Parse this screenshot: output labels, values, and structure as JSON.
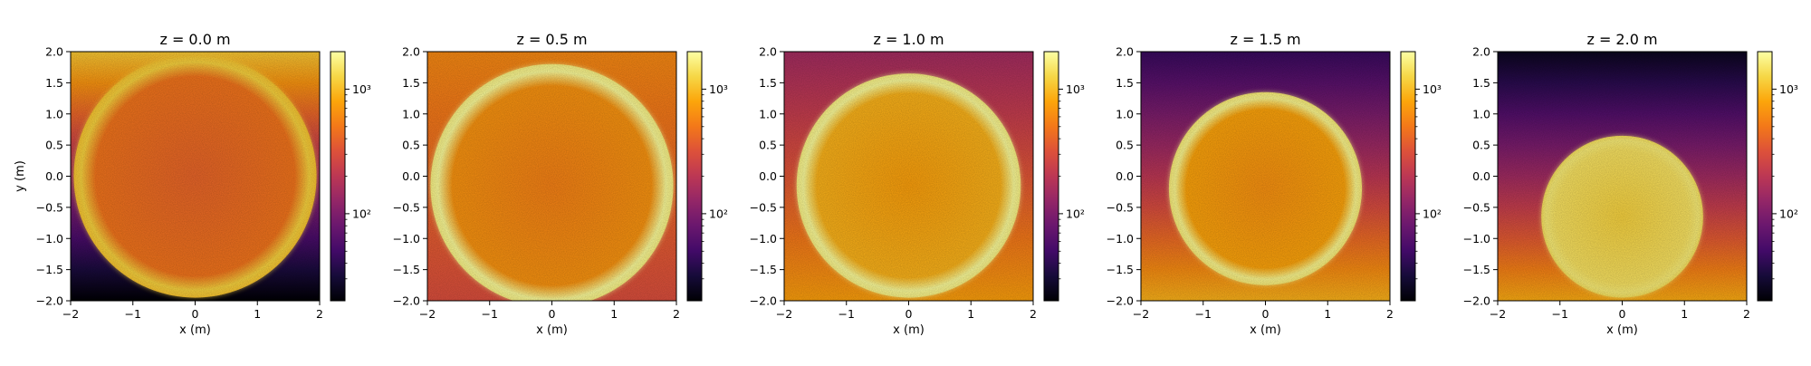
{
  "chart_data": {
    "type": "heatmap",
    "colormap": "inferno",
    "colorbar_scale": "log",
    "colorbar_range": [
      20,
      2000
    ],
    "colorbar_tick_labels": [
      {
        "value": 100,
        "label": "10²"
      },
      {
        "value": 1000,
        "label": "10³"
      }
    ],
    "xlabel": "x (m)",
    "ylabel": "y (m)",
    "xlim": [
      -2,
      2
    ],
    "ylim": [
      -2,
      2
    ],
    "x_tick_labels": [
      "−2",
      "−1",
      "0",
      "1",
      "2"
    ],
    "y_tick_labels": [
      "−2.0",
      "−1.5",
      "−1.0",
      "−0.5",
      "0.0",
      "0.5",
      "1.0",
      "1.5",
      "2.0"
    ],
    "panels": [
      {
        "title": "z = 0.0 m",
        "z": 0.0,
        "inner_level": 400,
        "ring_level": 1200,
        "outer_top": 1100,
        "outer_bottom": 20,
        "circle_center": [
          0.0,
          0.0
        ],
        "circle_radius": 1.95
      },
      {
        "title": "z = 0.5 m",
        "z": 0.5,
        "inner_level": 550,
        "ring_level": 1900,
        "outer_top": 600,
        "outer_bottom": 300,
        "circle_center": [
          0.0,
          -0.15
        ],
        "circle_radius": 1.95
      },
      {
        "title": "z = 1.0 m",
        "z": 1.0,
        "inner_level": 750,
        "ring_level": 1900,
        "outer_top": 150,
        "outer_bottom": 750,
        "circle_center": [
          0.0,
          -0.15
        ],
        "circle_radius": 1.8
      },
      {
        "title": "z = 1.5 m",
        "z": 1.5,
        "inner_level": 650,
        "ring_level": 1800,
        "outer_top": 45,
        "outer_bottom": 900,
        "circle_center": [
          0.0,
          -0.2
        ],
        "circle_radius": 1.55
      },
      {
        "title": "z = 2.0 m",
        "z": 2.0,
        "inner_level": 1200,
        "ring_level": 1600,
        "outer_top": 25,
        "outer_bottom": 850,
        "circle_center": [
          0.0,
          -0.65
        ],
        "circle_radius": 1.3
      }
    ]
  }
}
